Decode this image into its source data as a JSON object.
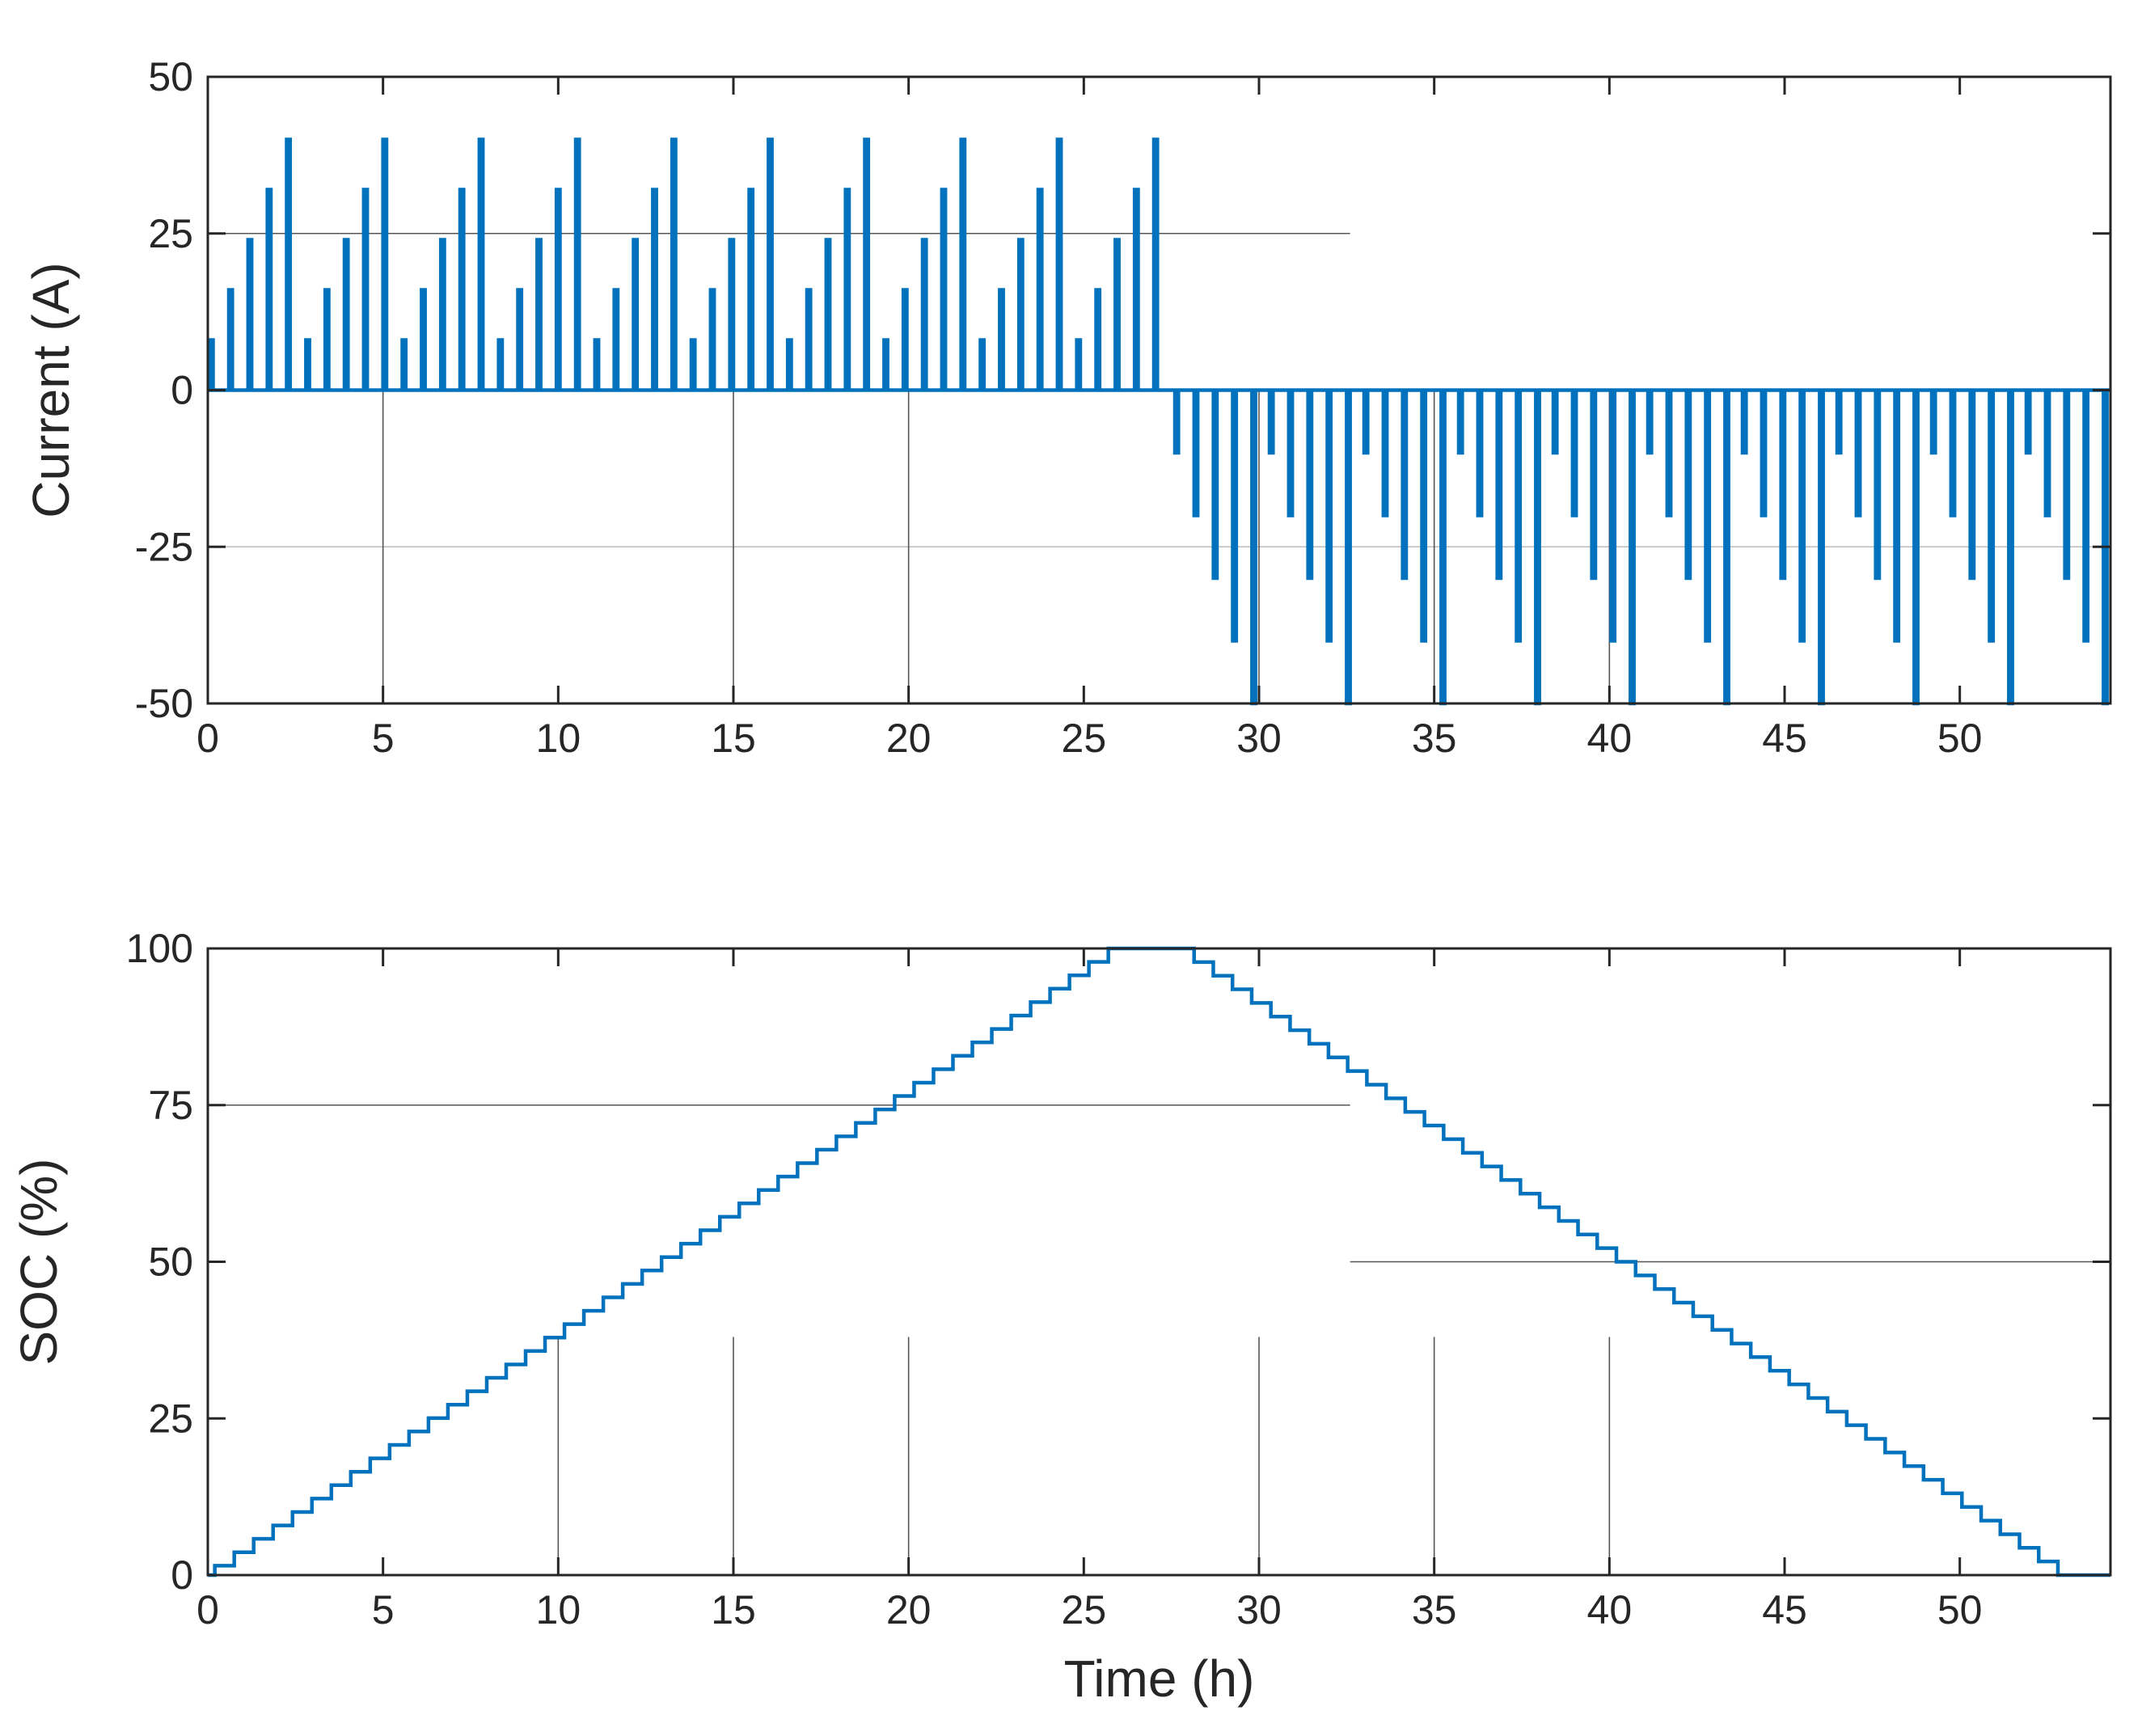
{
  "chart_data": [
    {
      "type": "line",
      "ylabel": "Current (A)",
      "xlabel": "",
      "xlim": [
        0,
        54.3
      ],
      "ylim": [
        -50,
        50
      ],
      "xticks": [
        0,
        5,
        10,
        15,
        20,
        25,
        30,
        35,
        40,
        45,
        50
      ],
      "yticks": [
        -50,
        -25,
        0,
        25,
        50
      ],
      "xtick_labels": [
        "0",
        "5",
        "10",
        "15",
        "20",
        "25",
        "30",
        "35",
        "40",
        "45",
        "50"
      ],
      "ytick_labels": [
        "-50",
        "-25",
        "0",
        "25",
        "50"
      ],
      "series": [
        {
          "color": "#0072BD",
          "charge_cycles": {
            "start": 0.05,
            "period": 2.75,
            "count": 10,
            "pulses_per_cycle": 5,
            "pulse_spacing": 0.55,
            "amplitudes": [
              8,
              16,
              24,
              32,
              40
            ]
          },
          "discharge_cycles": {
            "start": 27.6,
            "period": 2.7,
            "count": 10,
            "pulses_per_cycle": 5,
            "pulse_spacing": 0.55,
            "amplitudes": [
              -10,
              -20,
              -30,
              -40,
              -50
            ]
          }
        }
      ],
      "reference_lines": [
        {
          "orientation": "horizontal",
          "y": 25,
          "x_range": [
            0,
            32.6
          ],
          "color": "#555555"
        },
        {
          "orientation": "horizontal",
          "y": -25,
          "x_range": [
            0,
            54.3
          ],
          "color": "#bbbbbb"
        },
        {
          "orientation": "vertical",
          "x": 5,
          "y_range": [
            -50,
            0
          ]
        },
        {
          "orientation": "vertical",
          "x": 15,
          "y_range": [
            -50,
            0
          ]
        },
        {
          "orientation": "vertical",
          "x": 20,
          "y_range": [
            -50,
            0
          ]
        },
        {
          "orientation": "vertical",
          "x": 30,
          "y_range": [
            -50,
            0
          ]
        },
        {
          "orientation": "vertical",
          "x": 35,
          "y_range": [
            -50,
            0
          ]
        },
        {
          "orientation": "vertical",
          "x": 40,
          "y_range": [
            -50,
            0
          ]
        }
      ],
      "grid": false
    },
    {
      "type": "line",
      "ylabel": "SOC (%)",
      "xlabel": "Time (h)",
      "xlim": [
        0,
        54.3
      ],
      "ylim": [
        0,
        100
      ],
      "xticks": [
        0,
        5,
        10,
        15,
        20,
        25,
        30,
        35,
        40,
        45,
        50
      ],
      "yticks": [
        0,
        25,
        50,
        75,
        100
      ],
      "xtick_labels": [
        "0",
        "5",
        "10",
        "15",
        "20",
        "25",
        "30",
        "35",
        "40",
        "45",
        "50"
      ],
      "ytick_labels": [
        "0",
        "25",
        "50",
        "75",
        "100"
      ],
      "series": [
        {
          "color": "#0072BD",
          "shape": "staircase",
          "x": [
            0,
            0.2,
            25.7,
            27.6,
            52.8,
            54.3
          ],
          "y": [
            0,
            1.5,
            100,
            100,
            0,
            0
          ],
          "step_width": 0.55
        }
      ],
      "reference_lines": [
        {
          "orientation": "horizontal",
          "y": 75,
          "x_range": [
            0,
            32.6
          ],
          "color": "#555555"
        },
        {
          "orientation": "horizontal",
          "y": 50,
          "x_range": [
            32.6,
            54.3
          ],
          "color": "#555555"
        },
        {
          "orientation": "vertical",
          "x": 10,
          "y_range": [
            0,
            38
          ]
        },
        {
          "orientation": "vertical",
          "x": 15,
          "y_range": [
            0,
            38
          ]
        },
        {
          "orientation": "vertical",
          "x": 20,
          "y_range": [
            0,
            38
          ]
        },
        {
          "orientation": "vertical",
          "x": 30,
          "y_range": [
            0,
            38
          ]
        },
        {
          "orientation": "vertical",
          "x": 35,
          "y_range": [
            0,
            38
          ]
        },
        {
          "orientation": "vertical",
          "x": 40,
          "y_range": [
            0,
            38
          ]
        }
      ],
      "grid": false
    }
  ]
}
